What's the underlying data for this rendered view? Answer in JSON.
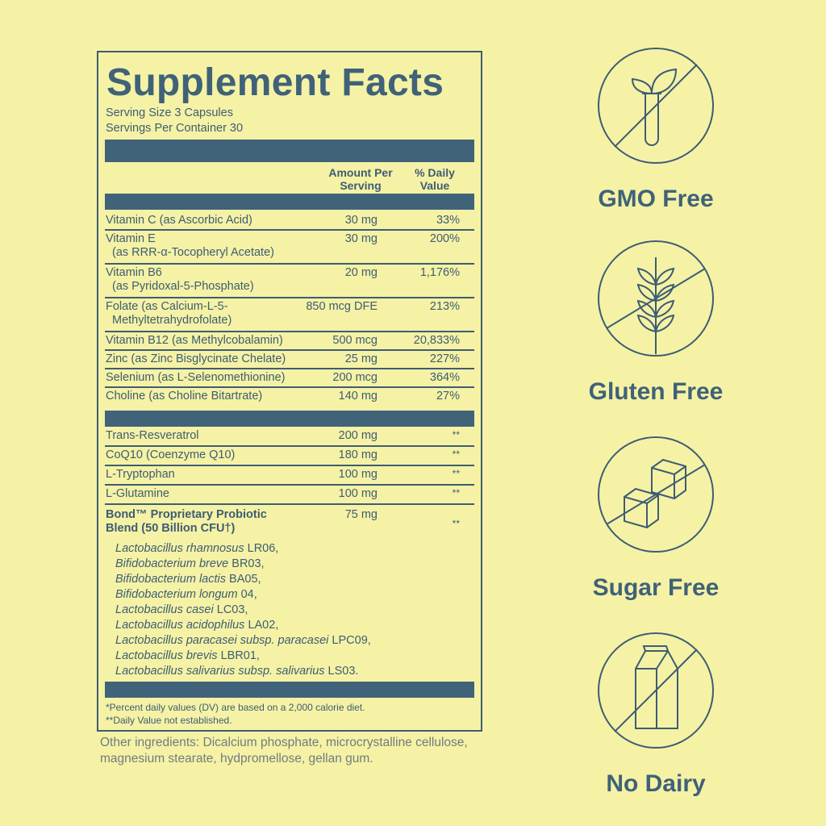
{
  "panel": {
    "title": "Supplement Facts",
    "serving_size": "Serving Size 3 Capsules",
    "servings_per_container": "Servings Per Container 30",
    "col_amount": "Amount Per Serving",
    "col_dv": "% Daily Value",
    "vitamins": [
      {
        "name": "Vitamin C (as Ascorbic Acid)",
        "sub": "",
        "amount": "30 mg",
        "dv": "33%"
      },
      {
        "name": "Vitamin E",
        "sub": "(as RRR-α-Tocopheryl Acetate)",
        "amount": "30 mg",
        "dv": "200%"
      },
      {
        "name": "Vitamin B6",
        "sub": "(as Pyridoxal-5-Phosphate)",
        "amount": "20 mg",
        "dv": "1,176%"
      },
      {
        "name": "Folate (as Calcium-L-5-",
        "sub": "Methyltetrahydrofolate)",
        "amount": "850 mcg DFE",
        "dv": "213%"
      },
      {
        "name": "Vitamin B12 (as Methylcobalamin)",
        "sub": "",
        "amount": "500 mcg",
        "dv": "20,833%"
      },
      {
        "name": "Zinc (as Zinc Bisglycinate Chelate)",
        "sub": "",
        "amount": "25 mg",
        "dv": "227%"
      },
      {
        "name": "Selenium (as L-Selenomethionine)",
        "sub": "",
        "amount": "200 mcg",
        "dv": "364%"
      },
      {
        "name": "Choline (as Choline Bitartrate)",
        "sub": "",
        "amount": "140 mg",
        "dv": "27%"
      }
    ],
    "others": [
      {
        "name": "Trans-Resveratrol",
        "amount": "200 mg",
        "dv": "**"
      },
      {
        "name": "CoQ10 (Coenzyme Q10)",
        "amount": "180 mg",
        "dv": "**"
      },
      {
        "name": "L-Tryptophan",
        "amount": "100 mg",
        "dv": "**"
      },
      {
        "name": "L-Glutamine",
        "amount": "100 mg",
        "dv": "**"
      }
    ],
    "blend": {
      "name_line1": "Bond™ Proprietary Probiotic",
      "name_line2": "Blend (50 Billion CFU†)",
      "amount": "75 mg",
      "dv": "**"
    },
    "strains": [
      {
        "species": "Lactobacillus rhamnosus",
        "code": "LR06,"
      },
      {
        "species": "Bifidobacterium breve",
        "code": "BR03,"
      },
      {
        "species": "Bifidobacterium lactis",
        "code": "BA05,"
      },
      {
        "species": "Bifidobacterium longum",
        "code": "04,"
      },
      {
        "species": "Lactobacillus casei",
        "code": "LC03,"
      },
      {
        "species": "Lactobacillus acidophilus",
        "code": "LA02,"
      },
      {
        "species": "Lactobacillus paracasei subsp. paracasei",
        "code": "LPC09,"
      },
      {
        "species": "Lactobacillus brevis",
        "code": "LBR01,"
      },
      {
        "species": "Lactobacillus salivarius subsp. salivarius",
        "code": "LS03."
      }
    ],
    "footnote1": "*Percent daily values (DV) are based on a 2,000 calorie diet.",
    "footnote2": "**Daily Value not established."
  },
  "other_ingredients": "Other ingredients: Dicalcium phosphate, microcrystalline cellulose, magnesium stearate, hydpromellose, gellan gum.",
  "badges": [
    {
      "label": "GMO Free",
      "icon": "plant-test-tube-icon"
    },
    {
      "label": "Gluten Free",
      "icon": "wheat-icon"
    },
    {
      "label": "Sugar Free",
      "icon": "sugar-cubes-icon"
    },
    {
      "label": "No Dairy",
      "icon": "milk-carton-icon"
    }
  ],
  "colors": {
    "background": "#f5f2a6",
    "ink": "#3d5d72",
    "bar": "#41637a"
  }
}
